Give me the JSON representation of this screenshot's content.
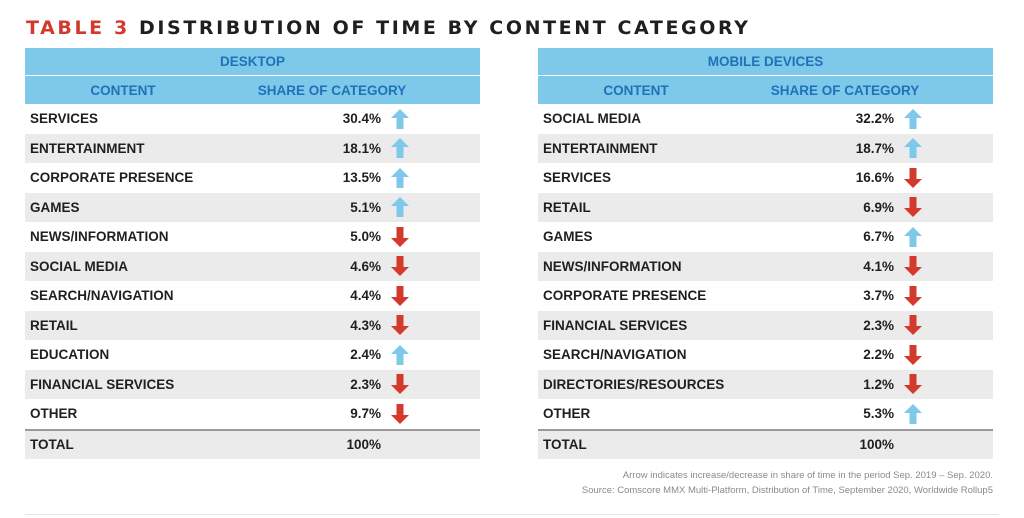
{
  "title": {
    "label": "TABLE 3",
    "text": "DISTRIBUTION OF TIME BY CONTENT CATEGORY"
  },
  "colors": {
    "up_arrow": "#7ec8ea",
    "down_arrow": "#d33a2c",
    "header_bg": "#7ec8ea",
    "header_text": "#1f72b8"
  },
  "desktop": {
    "header": "DESKTOP",
    "col_content": "CONTENT",
    "col_share": "SHARE OF CATEGORY",
    "rows": [
      {
        "name": "SERVICES",
        "value": "30.4%",
        "trend": "up"
      },
      {
        "name": "ENTERTAINMENT",
        "value": "18.1%",
        "trend": "up"
      },
      {
        "name": "CORPORATE PRESENCE",
        "value": "13.5%",
        "trend": "up"
      },
      {
        "name": "GAMES",
        "value": "5.1%",
        "trend": "up"
      },
      {
        "name": "NEWS/INFORMATION",
        "value": "5.0%",
        "trend": "down"
      },
      {
        "name": "SOCIAL MEDIA",
        "value": "4.6%",
        "trend": "down"
      },
      {
        "name": "SEARCH/NAVIGATION",
        "value": "4.4%",
        "trend": "down"
      },
      {
        "name": "RETAIL",
        "value": "4.3%",
        "trend": "down"
      },
      {
        "name": "EDUCATION",
        "value": "2.4%",
        "trend": "up"
      },
      {
        "name": "FINANCIAL SERVICES",
        "value": "2.3%",
        "trend": "down"
      },
      {
        "name": "OTHER",
        "value": "9.7%",
        "trend": "down"
      }
    ],
    "total": {
      "name": "TOTAL",
      "value": "100%"
    }
  },
  "mobile": {
    "header": "MOBILE DEVICES",
    "col_content": "CONTENT",
    "col_share": "SHARE OF CATEGORY",
    "rows": [
      {
        "name": "SOCIAL MEDIA",
        "value": "32.2%",
        "trend": "up"
      },
      {
        "name": "ENTERTAINMENT",
        "value": "18.7%",
        "trend": "up"
      },
      {
        "name": "SERVICES",
        "value": "16.6%",
        "trend": "down"
      },
      {
        "name": "RETAIL",
        "value": "6.9%",
        "trend": "down"
      },
      {
        "name": "GAMES",
        "value": "6.7%",
        "trend": "up"
      },
      {
        "name": "NEWS/INFORMATION",
        "value": "4.1%",
        "trend": "down"
      },
      {
        "name": "CORPORATE PRESENCE",
        "value": "3.7%",
        "trend": "down"
      },
      {
        "name": "FINANCIAL SERVICES",
        "value": "2.3%",
        "trend": "down"
      },
      {
        "name": "SEARCH/NAVIGATION",
        "value": "2.2%",
        "trend": "down"
      },
      {
        "name": "DIRECTORIES/RESOURCES",
        "value": "1.2%",
        "trend": "down"
      },
      {
        "name": "OTHER",
        "value": "5.3%",
        "trend": "up"
      }
    ],
    "total": {
      "name": "TOTAL",
      "value": "100%"
    }
  },
  "footnote": {
    "line1": "Arrow indicates increase/decrease in share of time in the period Sep. 2019 – Sep. 2020.",
    "line2": "Source: Comscore MMX Multi-Platform, Distribution of Time, September 2020, Worldwide Rollup5"
  }
}
